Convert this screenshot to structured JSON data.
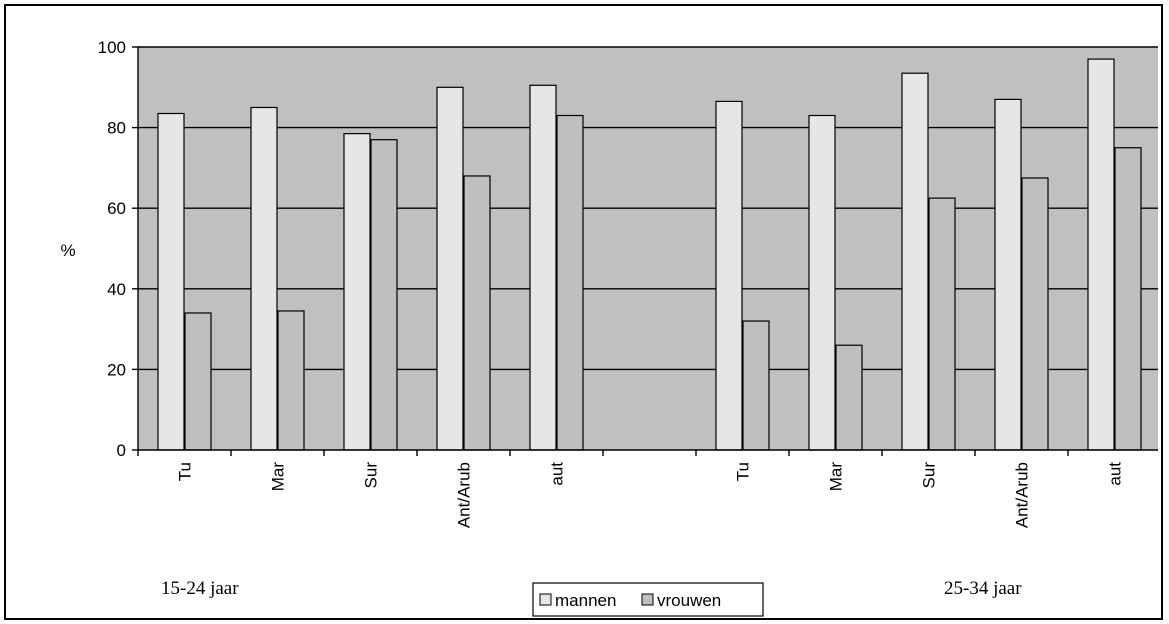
{
  "chart_data": {
    "type": "bar",
    "categories": [
      "Tu",
      "Mar",
      "Sur",
      "Ant/Arub",
      "aut",
      "Tu",
      "Mar",
      "Sur",
      "Ant/Arub",
      "aut"
    ],
    "groups": [
      {
        "label": "15-24 jaar",
        "categories": [
          "Tu",
          "Mar",
          "Sur",
          "Ant/Arub",
          "aut"
        ]
      },
      {
        "label": "25-34 jaar",
        "categories": [
          "Tu",
          "Mar",
          "Sur",
          "Ant/Arub",
          "aut"
        ]
      }
    ],
    "series": [
      {
        "name": "mannen",
        "color": "#e6e6e6",
        "values": [
          83.5,
          85,
          78.5,
          90,
          90.5,
          86.5,
          83,
          93.5,
          87,
          97
        ]
      },
      {
        "name": "vrouwen",
        "color": "#bfbfbf",
        "values": [
          34,
          34.5,
          77,
          68,
          83,
          32,
          26,
          62.5,
          67.5,
          75
        ]
      }
    ],
    "ylabel": "%",
    "ylim": [
      0,
      100
    ],
    "yticks": [
      0,
      20,
      40,
      60,
      80,
      100
    ],
    "grid": true,
    "plot_background": "#c0c0c0",
    "legend_position": "bottom-center"
  }
}
